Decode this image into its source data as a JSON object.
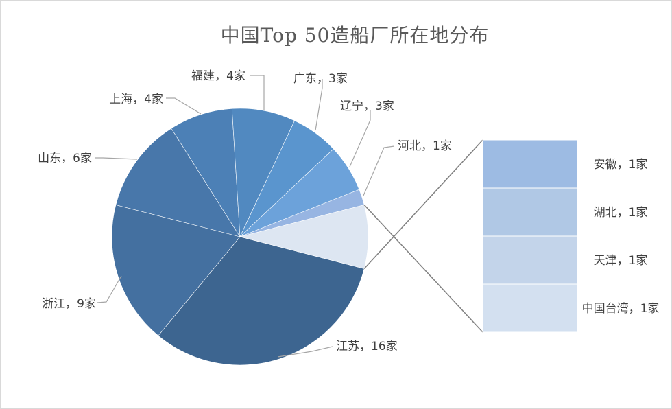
{
  "chart_data": {
    "type": "pie",
    "title": "中国Top 50造船厂所在地分布",
    "slices": [
      {
        "name": "江苏",
        "value": 16,
        "label": "江苏，16家",
        "color": "#3d6590"
      },
      {
        "name": "浙江",
        "value": 9,
        "label": "浙江，9家",
        "color": "#4470a0"
      },
      {
        "name": "山东",
        "value": 6,
        "label": "山东，6家",
        "color": "#4877aa"
      },
      {
        "name": "上海",
        "value": 4,
        "label": "上海，4家",
        "color": "#4c80b6"
      },
      {
        "name": "福建",
        "value": 4,
        "label": "福建，4家",
        "color": "#5189c0"
      },
      {
        "name": "广东",
        "value": 3,
        "label": "广东，3家",
        "color": "#5a95ce"
      },
      {
        "name": "辽宁",
        "value": 3,
        "label": "辽宁，3家",
        "color": "#6ca2da"
      },
      {
        "name": "河北",
        "value": 1,
        "label": "河北，1家",
        "color": "#97b5e2"
      }
    ],
    "other": {
      "value": 4,
      "color": "#dde6f2",
      "items": [
        {
          "name": "安徽",
          "value": 1,
          "label": "安徽，1家",
          "color": "#9dbbe3"
        },
        {
          "name": "湖北",
          "value": 1,
          "label": "湖北，1家",
          "color": "#b0c8e5"
        },
        {
          "name": "天津",
          "value": 1,
          "label": "天津，1家",
          "color": "#c3d4ea"
        },
        {
          "name": "中国台湾",
          "value": 1,
          "label": "中国台湾，1家",
          "color": "#d3e0f0"
        }
      ]
    }
  }
}
